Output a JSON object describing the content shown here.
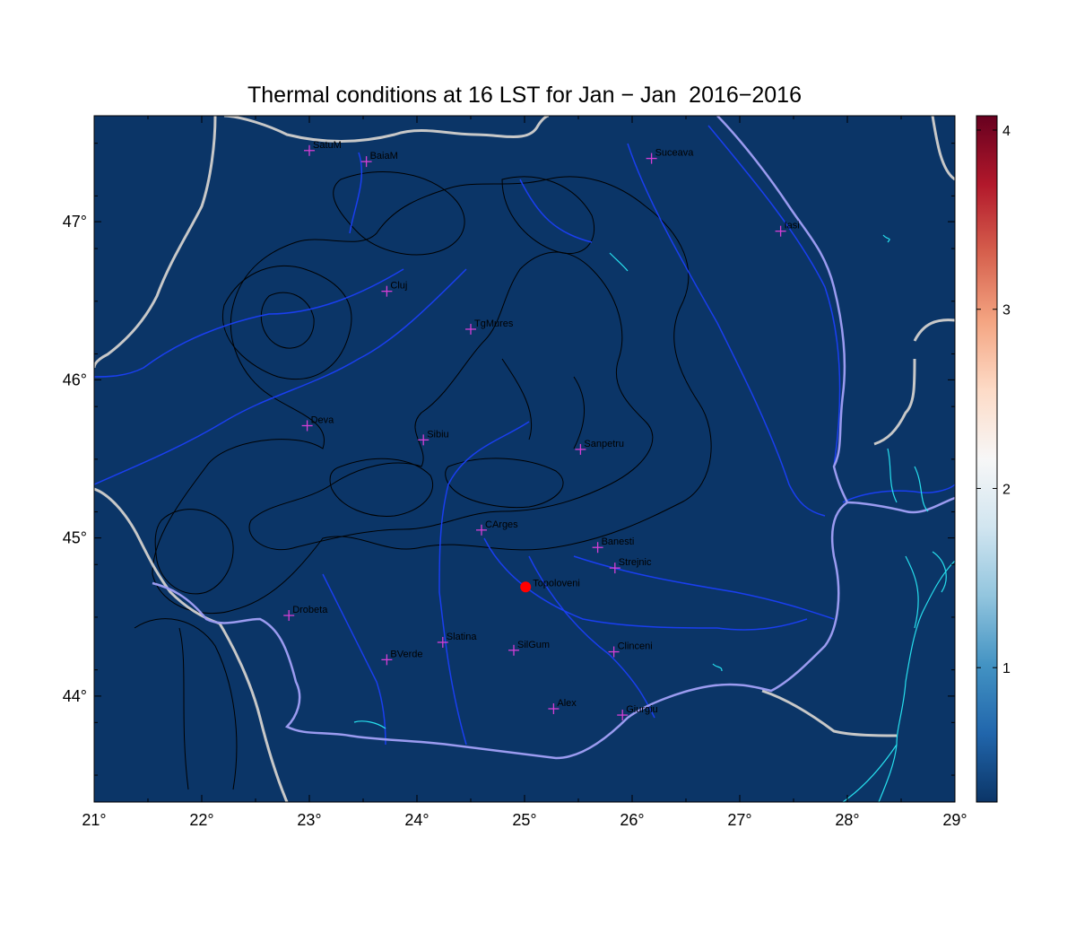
{
  "title": "Thermal conditions at 16 LST for Jan − Jan  2016−2016",
  "map": {
    "lon_range": [
      21,
      29
    ],
    "lat_range": [
      43.33,
      47.67
    ],
    "lon_ticks": [
      {
        "value": 21,
        "label": "21°"
      },
      {
        "value": 22,
        "label": "22°"
      },
      {
        "value": 23,
        "label": "23°"
      },
      {
        "value": 24,
        "label": "24°"
      },
      {
        "value": 25,
        "label": "25°"
      },
      {
        "value": 26,
        "label": "26°"
      },
      {
        "value": 27,
        "label": "27°"
      },
      {
        "value": 28,
        "label": "28°"
      },
      {
        "value": 29,
        "label": "29°"
      }
    ],
    "lat_ticks": [
      {
        "value": 44,
        "label": "44°"
      },
      {
        "value": 45,
        "label": "45°"
      },
      {
        "value": 46,
        "label": "46°"
      },
      {
        "value": 47,
        "label": "47°"
      }
    ],
    "background_color": "#0b3567",
    "border_color": "#c8c8c8",
    "river_color": "#1a3ff0",
    "contour_color": "#000000",
    "coast_color": "#27e0ee",
    "stations_color": "#d63fd6",
    "highlight_color": "#ff0000",
    "stations": [
      {
        "name": "SatuM",
        "lon": 23.0,
        "lat": 47.45
      },
      {
        "name": "BaiaM",
        "lon": 23.53,
        "lat": 47.38
      },
      {
        "name": "Suceava",
        "lon": 26.18,
        "lat": 47.4
      },
      {
        "name": "Iasi",
        "lon": 27.38,
        "lat": 46.94
      },
      {
        "name": "Cluj",
        "lon": 23.72,
        "lat": 46.56
      },
      {
        "name": "TgMures",
        "lon": 24.5,
        "lat": 46.32
      },
      {
        "name": "Deva",
        "lon": 22.98,
        "lat": 45.71
      },
      {
        "name": "Sibiu",
        "lon": 24.06,
        "lat": 45.62
      },
      {
        "name": "Sanpetru",
        "lon": 25.52,
        "lat": 45.56
      },
      {
        "name": "CArges",
        "lon": 24.6,
        "lat": 45.05
      },
      {
        "name": "Banesti",
        "lon": 25.68,
        "lat": 44.94
      },
      {
        "name": "Strejnic",
        "lon": 25.84,
        "lat": 44.81
      },
      {
        "name": "Drobeta",
        "lon": 22.81,
        "lat": 44.51
      },
      {
        "name": "Slatina",
        "lon": 24.24,
        "lat": 44.34
      },
      {
        "name": "SilGum",
        "lon": 24.9,
        "lat": 44.29
      },
      {
        "name": "Clinceni",
        "lon": 25.83,
        "lat": 44.28
      },
      {
        "name": "BVerde",
        "lon": 23.72,
        "lat": 44.23
      },
      {
        "name": "Alex",
        "lon": 25.27,
        "lat": 43.92
      },
      {
        "name": "Giurgiu",
        "lon": 25.91,
        "lat": 43.88
      }
    ],
    "highlight": {
      "name": "Topoloveni",
      "lon": 25.01,
      "lat": 44.69
    }
  },
  "colorbar": {
    "min": 0.25,
    "max": 4.08,
    "ticks": [
      {
        "value": 1,
        "label": "1"
      },
      {
        "value": 2,
        "label": "2"
      },
      {
        "value": 3,
        "label": "3"
      },
      {
        "value": 4,
        "label": "4"
      }
    ],
    "colors": [
      "#0b3567",
      "#2166ac",
      "#4393c3",
      "#92c5de",
      "#d1e5f0",
      "#f7f7f7",
      "#fddbc7",
      "#f4a582",
      "#d6604d",
      "#b2182b",
      "#67001f"
    ]
  }
}
